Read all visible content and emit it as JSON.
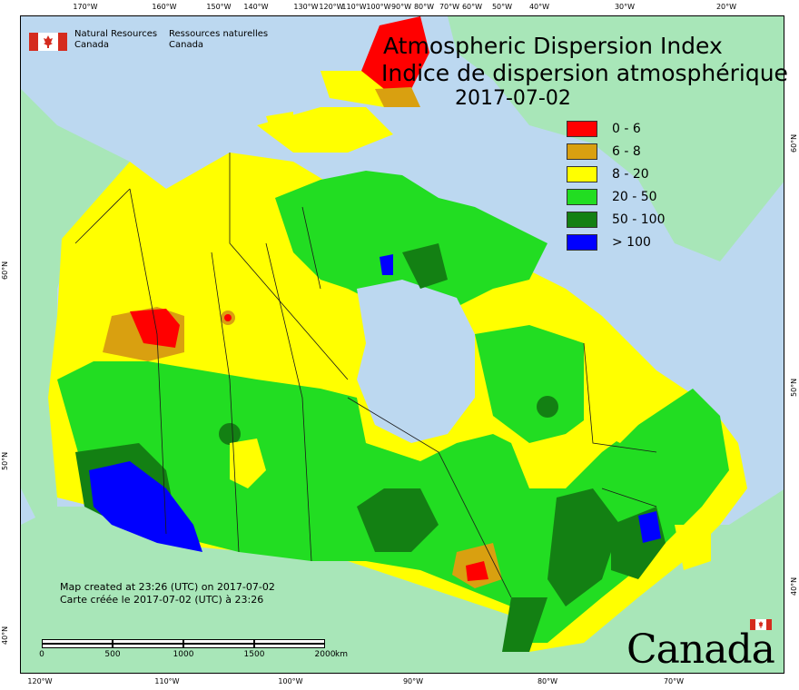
{
  "title": {
    "english": "Atmospheric Dispersion Index",
    "french": "Indice de dispersion atmosphérique",
    "date": "2017-07-02"
  },
  "agency": {
    "english_line1": "Natural Resources",
    "english_line2": "Canada",
    "french_line1": "Ressources naturelles",
    "french_line2": "Canada"
  },
  "legend": [
    {
      "label": "0 - 6",
      "color": "#ff0000"
    },
    {
      "label": "6 - 8",
      "color": "#d9a010"
    },
    {
      "label": "8 - 20",
      "color": "#ffff00"
    },
    {
      "label": "20 - 50",
      "color": "#22dd22"
    },
    {
      "label": "50 - 100",
      "color": "#138013"
    },
    {
      "label": "> 100",
      "color": "#0000ff"
    }
  ],
  "map_created": {
    "english": "Map created at 23:26 (UTC) on 2017-07-02",
    "french": "Carte créée le 2017-07-02 (UTC) à 23:26"
  },
  "scalebar": {
    "labels": [
      "0",
      "500",
      "1000",
      "1500",
      "2000"
    ],
    "unit": "km"
  },
  "wordmark": "Canada",
  "graticule": {
    "top": [
      "170°W",
      "160°W",
      "150°W",
      "140°W",
      "130°W",
      "120°W",
      "110°W",
      "100°W",
      "90°W",
      "80°W",
      "70°W",
      "60°W",
      "50°W",
      "40°W",
      "30°W",
      "20°W"
    ],
    "bottom": [
      "120°W",
      "110°W",
      "100°W",
      "90°W",
      "80°W",
      "70°W"
    ],
    "left": [
      "60°N",
      "50°N",
      "40°N"
    ],
    "right": [
      "60°N",
      "50°N",
      "40°N"
    ]
  },
  "colors": {
    "ocean": "#bcd8f0",
    "land_outside": "#a8e6b8",
    "boundary": "#1a1a1a"
  }
}
